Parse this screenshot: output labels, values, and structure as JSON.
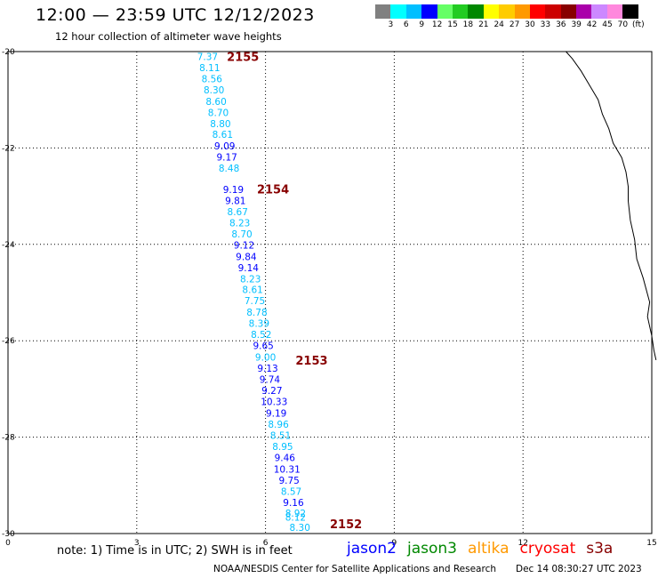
{
  "header": {
    "title": "12:00 — 23:59 UTC 12/12/2023",
    "subtitle": "12 hour collection of altimeter wave heights"
  },
  "legend": {
    "colors": [
      "#808080",
      "#00ffff",
      "#00bfff",
      "#0000ff",
      "#66ff66",
      "#22cc22",
      "#008800",
      "#ffff00",
      "#ffcc00",
      "#ff9900",
      "#ff0000",
      "#cc0000",
      "#880000",
      "#aa00aa",
      "#cc88ff",
      "#ff88dd",
      "#000000"
    ],
    "labels": [
      "3",
      "6",
      "9",
      "12",
      "15",
      "18",
      "21",
      "24",
      "27",
      "30",
      "33",
      "36",
      "39",
      "42",
      "45",
      "70",
      "(ft)"
    ]
  },
  "map": {
    "x_ticks": [
      "0",
      "3",
      "6",
      "9",
      "12",
      "15"
    ],
    "y_ticks": [
      "-20",
      "-22",
      "-24",
      "-26",
      "-28",
      "-30"
    ],
    "x_range": [
      0,
      15
    ],
    "y_range": [
      -20,
      -30
    ],
    "grid": true,
    "coastline_lon_lat": [
      [
        13.0,
        -20.0
      ],
      [
        13.15,
        -20.15
      ],
      [
        13.35,
        -20.4
      ],
      [
        13.55,
        -20.7
      ],
      [
        13.75,
        -21.0
      ],
      [
        13.85,
        -21.3
      ],
      [
        14.0,
        -21.6
      ],
      [
        14.1,
        -21.9
      ],
      [
        14.3,
        -22.2
      ],
      [
        14.4,
        -22.5
      ],
      [
        14.45,
        -22.8
      ],
      [
        14.45,
        -23.1
      ],
      [
        14.5,
        -23.5
      ],
      [
        14.6,
        -23.9
      ],
      [
        14.65,
        -24.3
      ],
      [
        14.8,
        -24.7
      ],
      [
        14.95,
        -25.2
      ],
      [
        14.9,
        -25.5
      ],
      [
        15.0,
        -25.9
      ],
      [
        15.05,
        -26.2
      ],
      [
        15.1,
        -26.4
      ]
    ],
    "orbit_labels": [
      {
        "text": "2155",
        "color": "#880000",
        "lon": 5.1,
        "lat": -20.1
      },
      {
        "text": "2154",
        "color": "#880000",
        "lon": 5.8,
        "lat": -22.85
      },
      {
        "text": "2153",
        "color": "#880000",
        "lon": 6.7,
        "lat": -26.4
      },
      {
        "text": "2152",
        "color": "#880000",
        "lon": 7.5,
        "lat": -29.8
      }
    ],
    "points": [
      {
        "value": "7.37",
        "color": "#00bfff",
        "lon": 4.65,
        "lat": -20.1
      },
      {
        "value": "8.11",
        "color": "#00bfff",
        "lon": 4.7,
        "lat": -20.33
      },
      {
        "value": "8.56",
        "color": "#00bfff",
        "lon": 4.75,
        "lat": -20.56
      },
      {
        "value": "8.30",
        "color": "#00bfff",
        "lon": 4.8,
        "lat": -20.79
      },
      {
        "value": "8.60",
        "color": "#00bfff",
        "lon": 4.85,
        "lat": -21.03
      },
      {
        "value": "8.70",
        "color": "#00bfff",
        "lon": 4.9,
        "lat": -21.26
      },
      {
        "value": "8.80",
        "color": "#00bfff",
        "lon": 4.95,
        "lat": -21.49
      },
      {
        "value": "8.61",
        "color": "#00bfff",
        "lon": 5.0,
        "lat": -21.72
      },
      {
        "value": "9.09",
        "color": "#0000ff",
        "lon": 5.05,
        "lat": -21.96
      },
      {
        "value": "9.17",
        "color": "#0000ff",
        "lon": 5.1,
        "lat": -22.19
      },
      {
        "value": "8.48",
        "color": "#00bfff",
        "lon": 5.15,
        "lat": -22.42
      },
      {
        "value": "9.19",
        "color": "#0000ff",
        "lon": 5.25,
        "lat": -22.86
      },
      {
        "value": "9.81",
        "color": "#0000ff",
        "lon": 5.3,
        "lat": -23.09
      },
      {
        "value": "8.67",
        "color": "#00bfff",
        "lon": 5.35,
        "lat": -23.32
      },
      {
        "value": "8.23",
        "color": "#00bfff",
        "lon": 5.4,
        "lat": -23.55
      },
      {
        "value": "8.70",
        "color": "#00bfff",
        "lon": 5.45,
        "lat": -23.78
      },
      {
        "value": "9.12",
        "color": "#0000ff",
        "lon": 5.5,
        "lat": -24.01
      },
      {
        "value": "9.84",
        "color": "#0000ff",
        "lon": 5.55,
        "lat": -24.25
      },
      {
        "value": "9.14",
        "color": "#0000ff",
        "lon": 5.6,
        "lat": -24.48
      },
      {
        "value": "8.23",
        "color": "#00bfff",
        "lon": 5.65,
        "lat": -24.71
      },
      {
        "value": "8.61",
        "color": "#00bfff",
        "lon": 5.7,
        "lat": -24.94
      },
      {
        "value": "7.75",
        "color": "#00bfff",
        "lon": 5.75,
        "lat": -25.17
      },
      {
        "value": "8.78",
        "color": "#00bfff",
        "lon": 5.8,
        "lat": -25.41
      },
      {
        "value": "8.39",
        "color": "#00bfff",
        "lon": 5.85,
        "lat": -25.64
      },
      {
        "value": "8.52",
        "color": "#00bfff",
        "lon": 5.9,
        "lat": -25.87
      },
      {
        "value": "9.65",
        "color": "#0000ff",
        "lon": 5.95,
        "lat": -26.1
      },
      {
        "value": "9.00",
        "color": "#00bfff",
        "lon": 6.0,
        "lat": -26.34
      },
      {
        "value": "9.13",
        "color": "#0000ff",
        "lon": 6.05,
        "lat": -26.57
      },
      {
        "value": "9.74",
        "color": "#0000ff",
        "lon": 6.1,
        "lat": -26.8
      },
      {
        "value": "9.27",
        "color": "#0000ff",
        "lon": 6.15,
        "lat": -27.03
      },
      {
        "value": "10.33",
        "color": "#0000ff",
        "lon": 6.2,
        "lat": -27.26
      },
      {
        "value": "9.19",
        "color": "#0000ff",
        "lon": 6.25,
        "lat": -27.5
      },
      {
        "value": "8.96",
        "color": "#00bfff",
        "lon": 6.3,
        "lat": -27.73
      },
      {
        "value": "8.51",
        "color": "#00bfff",
        "lon": 6.35,
        "lat": -27.96
      },
      {
        "value": "8.95",
        "color": "#00bfff",
        "lon": 6.4,
        "lat": -28.19
      },
      {
        "value": "9.46",
        "color": "#0000ff",
        "lon": 6.45,
        "lat": -28.42
      },
      {
        "value": "10.31",
        "color": "#0000ff",
        "lon": 6.5,
        "lat": -28.66
      },
      {
        "value": "9.75",
        "color": "#0000ff",
        "lon": 6.55,
        "lat": -28.89
      },
      {
        "value": "8.57",
        "color": "#00bfff",
        "lon": 6.6,
        "lat": -29.12
      },
      {
        "value": "9.16",
        "color": "#0000ff",
        "lon": 6.65,
        "lat": -29.35
      },
      {
        "value": "8.92",
        "color": "#00bfff",
        "lon": 6.7,
        "lat": -29.58
      },
      {
        "value": "8.12",
        "color": "#00bfff",
        "lon": 6.7,
        "lat": -29.66
      },
      {
        "value": "8.30",
        "color": "#00bfff",
        "lon": 6.8,
        "lat": -29.87
      }
    ]
  },
  "footer": {
    "note": "note: 1) Time is in UTC; 2) SWH is in feet",
    "satellites": [
      {
        "name": "jason2",
        "color": "#0000ff"
      },
      {
        "name": "jason3",
        "color": "#008800"
      },
      {
        "name": "altika",
        "color": "#ff9900"
      },
      {
        "name": "cryosat",
        "color": "#ff0000"
      },
      {
        "name": "s3a",
        "color": "#880000"
      }
    ],
    "credit": "NOAA/NESDIS Center for Satellite Applications and Research",
    "timestamp": "Dec 14 08:30:27 UTC 2023"
  }
}
